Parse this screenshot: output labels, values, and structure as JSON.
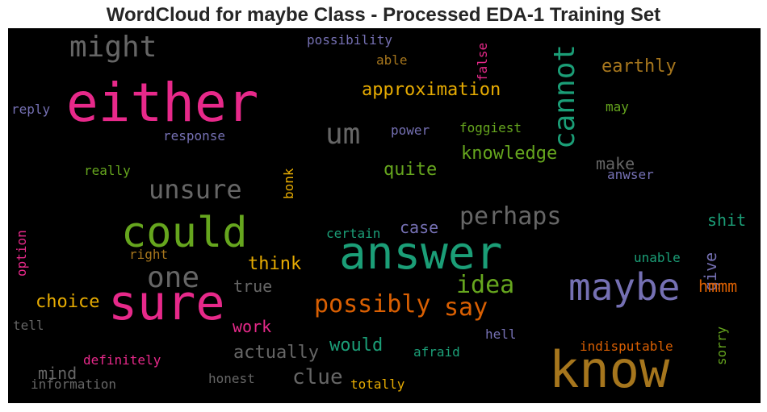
{
  "chart_data": {
    "type": "wordcloud",
    "title": "WordCloud for maybe Class - Processed EDA-1 Training Set",
    "background": "#000000",
    "words": [
      {
        "text": "either",
        "color": "#e7298a"
      },
      {
        "text": "answer",
        "color": "#1b9e77"
      },
      {
        "text": "know",
        "color": "#a6761d"
      },
      {
        "text": "sure",
        "color": "#e7298a"
      },
      {
        "text": "could",
        "color": "#66a61e"
      },
      {
        "text": "maybe",
        "color": "#7570b3"
      },
      {
        "text": "might",
        "color": "#666666"
      },
      {
        "text": "cannot",
        "color": "#1b9e77"
      },
      {
        "text": "one",
        "color": "#666666"
      },
      {
        "text": "unsure",
        "color": "#666666"
      },
      {
        "text": "perhaps",
        "color": "#666666"
      },
      {
        "text": "um",
        "color": "#666666"
      },
      {
        "text": "possibly",
        "color": "#d95f02"
      },
      {
        "text": "say",
        "color": "#d95f02"
      },
      {
        "text": "idea",
        "color": "#66a61e"
      },
      {
        "text": "earthly",
        "color": "#a6761d"
      },
      {
        "text": "approximation",
        "color": "#e6ab02"
      },
      {
        "text": "knowledge",
        "color": "#66a61e"
      },
      {
        "text": "clue",
        "color": "#666666"
      },
      {
        "text": "choice",
        "color": "#e6ab02"
      },
      {
        "text": "think",
        "color": "#e6ab02"
      },
      {
        "text": "would",
        "color": "#1b9e77"
      },
      {
        "text": "actually",
        "color": "#666666"
      },
      {
        "text": "quite",
        "color": "#66a61e"
      },
      {
        "text": "case",
        "color": "#7570b3"
      },
      {
        "text": "shit",
        "color": "#1b9e77"
      },
      {
        "text": "give",
        "color": "#7570b3"
      },
      {
        "text": "hmmm",
        "color": "#d95f02"
      },
      {
        "text": "make",
        "color": "#666666"
      },
      {
        "text": "work",
        "color": "#e7298a"
      },
      {
        "text": "true",
        "color": "#666666"
      },
      {
        "text": "mind",
        "color": "#666666"
      },
      {
        "text": "possibility",
        "color": "#7570b3"
      },
      {
        "text": "response",
        "color": "#7570b3"
      },
      {
        "text": "indisputable",
        "color": "#d95f02"
      },
      {
        "text": "definitely",
        "color": "#e7298a"
      },
      {
        "text": "sorry",
        "color": "#66a61e"
      },
      {
        "text": "foggiest",
        "color": "#66a61e"
      },
      {
        "text": "reply",
        "color": "#7570b3"
      },
      {
        "text": "power",
        "color": "#7570b3"
      },
      {
        "text": "really",
        "color": "#66a61e"
      },
      {
        "text": "bonk",
        "color": "#e6ab02"
      },
      {
        "text": "certain",
        "color": "#1b9e77"
      },
      {
        "text": "unable",
        "color": "#1b9e77"
      },
      {
        "text": "may",
        "color": "#66a61e"
      },
      {
        "text": "able",
        "color": "#a6761d"
      },
      {
        "text": "false",
        "color": "#e7298a"
      },
      {
        "text": "anwser",
        "color": "#7570b3"
      },
      {
        "text": "option",
        "color": "#e7298a"
      },
      {
        "text": "right",
        "color": "#a6761d"
      },
      {
        "text": "tell",
        "color": "#666666"
      },
      {
        "text": "hell",
        "color": "#7570b3"
      },
      {
        "text": "afraid",
        "color": "#1b9e77"
      },
      {
        "text": "honest",
        "color": "#666666"
      },
      {
        "text": "totally",
        "color": "#e6ab02"
      },
      {
        "text": "information",
        "color": "#666666"
      }
    ]
  }
}
